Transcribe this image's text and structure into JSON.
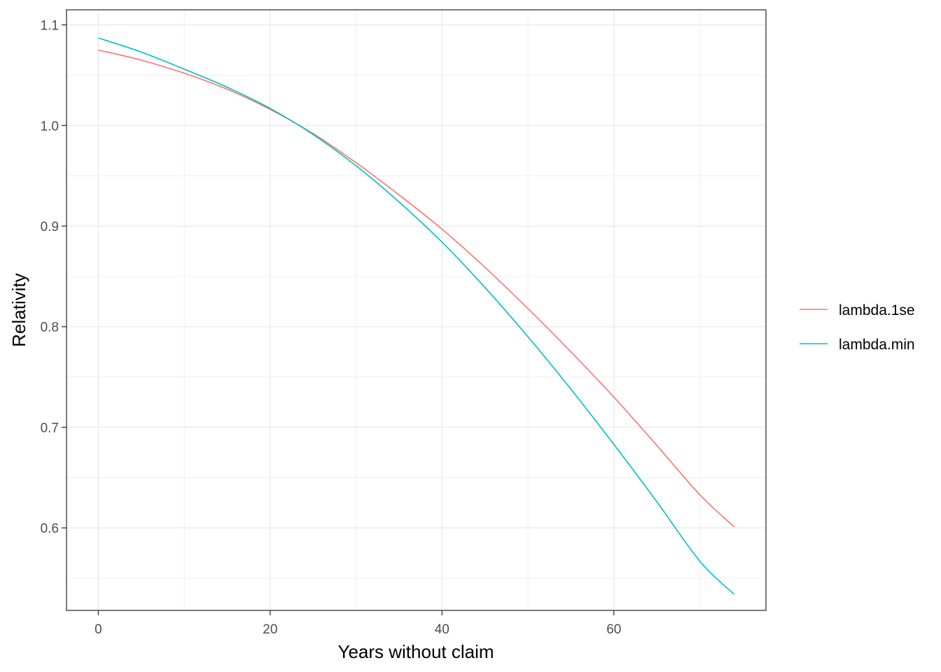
{
  "chart_data": {
    "type": "line",
    "title": "",
    "xlabel": "Years without claim",
    "ylabel": "Relativity",
    "xlim": [
      -3.7,
      77.7
    ],
    "ylim": [
      0.518,
      1.115
    ],
    "x_ticks": [
      0,
      20,
      40,
      60
    ],
    "y_ticks": [
      0.6,
      0.7,
      0.8,
      0.9,
      1.0,
      1.1
    ],
    "x_tick_labels": [
      "0",
      "20",
      "40",
      "60"
    ],
    "y_tick_labels": [
      "0.6",
      "0.7",
      "0.8",
      "0.9",
      "1.0",
      "1.1"
    ],
    "grid": true,
    "legend_position": "right",
    "x": [
      0,
      5,
      10,
      15,
      20,
      25,
      30,
      35,
      40,
      45,
      50,
      55,
      60,
      65,
      70,
      74
    ],
    "series": [
      {
        "name": "lambda.1se",
        "color": "#F8766D",
        "values": [
          1.075,
          1.065,
          1.052,
          1.036,
          1.016,
          0.992,
          0.963,
          0.931,
          0.897,
          0.859,
          0.818,
          0.775,
          0.73,
          0.682,
          0.633,
          0.601
        ]
      },
      {
        "name": "lambda.min",
        "color": "#00BFC4",
        "values": [
          1.087,
          1.073,
          1.056,
          1.038,
          1.017,
          0.991,
          0.96,
          0.924,
          0.884,
          0.839,
          0.79,
          0.738,
          0.683,
          0.626,
          0.567,
          0.534
        ]
      }
    ]
  }
}
